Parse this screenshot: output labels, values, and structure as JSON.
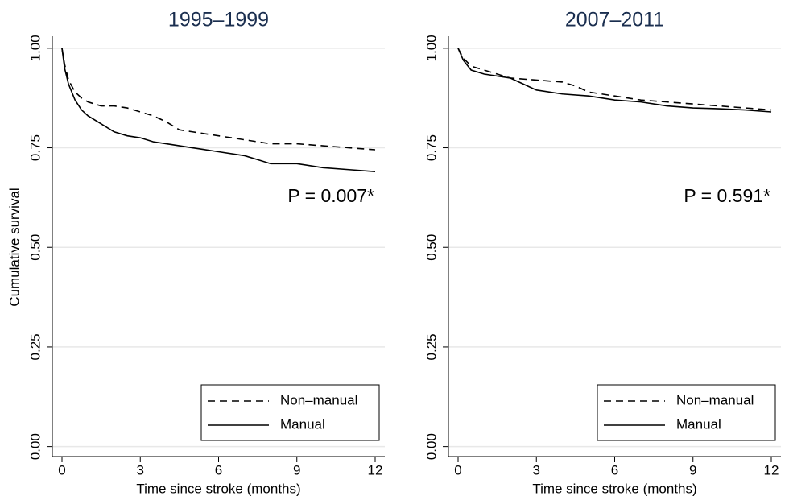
{
  "chart_data": [
    {
      "type": "line",
      "title": "1995–1999",
      "xlabel": "Time since stroke (months)",
      "ylabel": "Cumulative survival",
      "annotation": "P = 0.007*",
      "legend": "lower right",
      "grid": true,
      "xlim": [
        -0.37,
        12.37
      ],
      "xticks": [
        0,
        3,
        6,
        9,
        12
      ],
      "ylim": [
        -0.025,
        1.03
      ],
      "yticks": [
        {
          "value": 0,
          "label": "0.00"
        },
        {
          "value": 0.25,
          "label": "0.25"
        },
        {
          "value": 0.5,
          "label": "0.50"
        },
        {
          "value": 0.75,
          "label": "0.75"
        },
        {
          "value": 1,
          "label": "1.00"
        }
      ],
      "series": [
        {
          "name": "Non–manual",
          "color": "#000000",
          "dash": "dashed",
          "x": [
            0,
            0.1,
            0.25,
            0.5,
            0.75,
            1,
            1.5,
            2,
            2.5,
            3,
            3.5,
            4,
            4.5,
            5,
            6,
            7,
            7.5,
            8,
            9,
            10,
            11,
            12
          ],
          "values": [
            1.0,
            0.96,
            0.92,
            0.89,
            0.875,
            0.865,
            0.855,
            0.855,
            0.85,
            0.84,
            0.83,
            0.815,
            0.795,
            0.79,
            0.78,
            0.77,
            0.765,
            0.76,
            0.76,
            0.755,
            0.75,
            0.745
          ]
        },
        {
          "name": "Manual",
          "color": "#000000",
          "dash": "solid",
          "x": [
            0,
            0.1,
            0.25,
            0.5,
            0.75,
            1,
            1.5,
            2,
            2.5,
            3,
            3.5,
            4,
            5,
            6,
            7,
            7.5,
            8,
            9,
            10,
            11,
            12
          ],
          "values": [
            1.0,
            0.95,
            0.91,
            0.87,
            0.845,
            0.83,
            0.81,
            0.79,
            0.78,
            0.775,
            0.765,
            0.76,
            0.75,
            0.74,
            0.73,
            0.72,
            0.71,
            0.71,
            0.7,
            0.695,
            0.69
          ]
        }
      ]
    },
    {
      "type": "line",
      "title": "2007–2011",
      "xlabel": "Time since stroke (months)",
      "annotation": "P = 0.591*",
      "legend": "lower right",
      "grid": true,
      "xlim": [
        -0.37,
        12.37
      ],
      "xticks": [
        0,
        3,
        6,
        9,
        12
      ],
      "ylim": [
        -0.025,
        1.03
      ],
      "yticks": [
        {
          "value": 0,
          "label": "0.00"
        },
        {
          "value": 0.25,
          "label": "0.25"
        },
        {
          "value": 0.5,
          "label": "0.50"
        },
        {
          "value": 0.75,
          "label": "0.75"
        },
        {
          "value": 1,
          "label": "1.00"
        }
      ],
      "series": [
        {
          "name": "Non–manual",
          "color": "#000000",
          "dash": "dashed",
          "x": [
            0,
            0.2,
            0.5,
            1,
            1.5,
            2,
            3,
            4,
            4.5,
            5,
            6,
            7,
            8,
            9,
            10,
            11,
            12
          ],
          "values": [
            1.0,
            0.975,
            0.955,
            0.945,
            0.935,
            0.925,
            0.92,
            0.915,
            0.905,
            0.89,
            0.88,
            0.87,
            0.865,
            0.86,
            0.855,
            0.85,
            0.845
          ]
        },
        {
          "name": "Manual",
          "color": "#000000",
          "dash": "solid",
          "x": [
            0,
            0.2,
            0.5,
            1,
            2,
            2.5,
            3,
            4,
            5,
            6,
            7,
            8,
            9,
            10,
            11,
            12
          ],
          "values": [
            1.0,
            0.97,
            0.945,
            0.935,
            0.925,
            0.91,
            0.895,
            0.885,
            0.88,
            0.87,
            0.865,
            0.855,
            0.85,
            0.848,
            0.845,
            0.84
          ]
        }
      ]
    }
  ]
}
